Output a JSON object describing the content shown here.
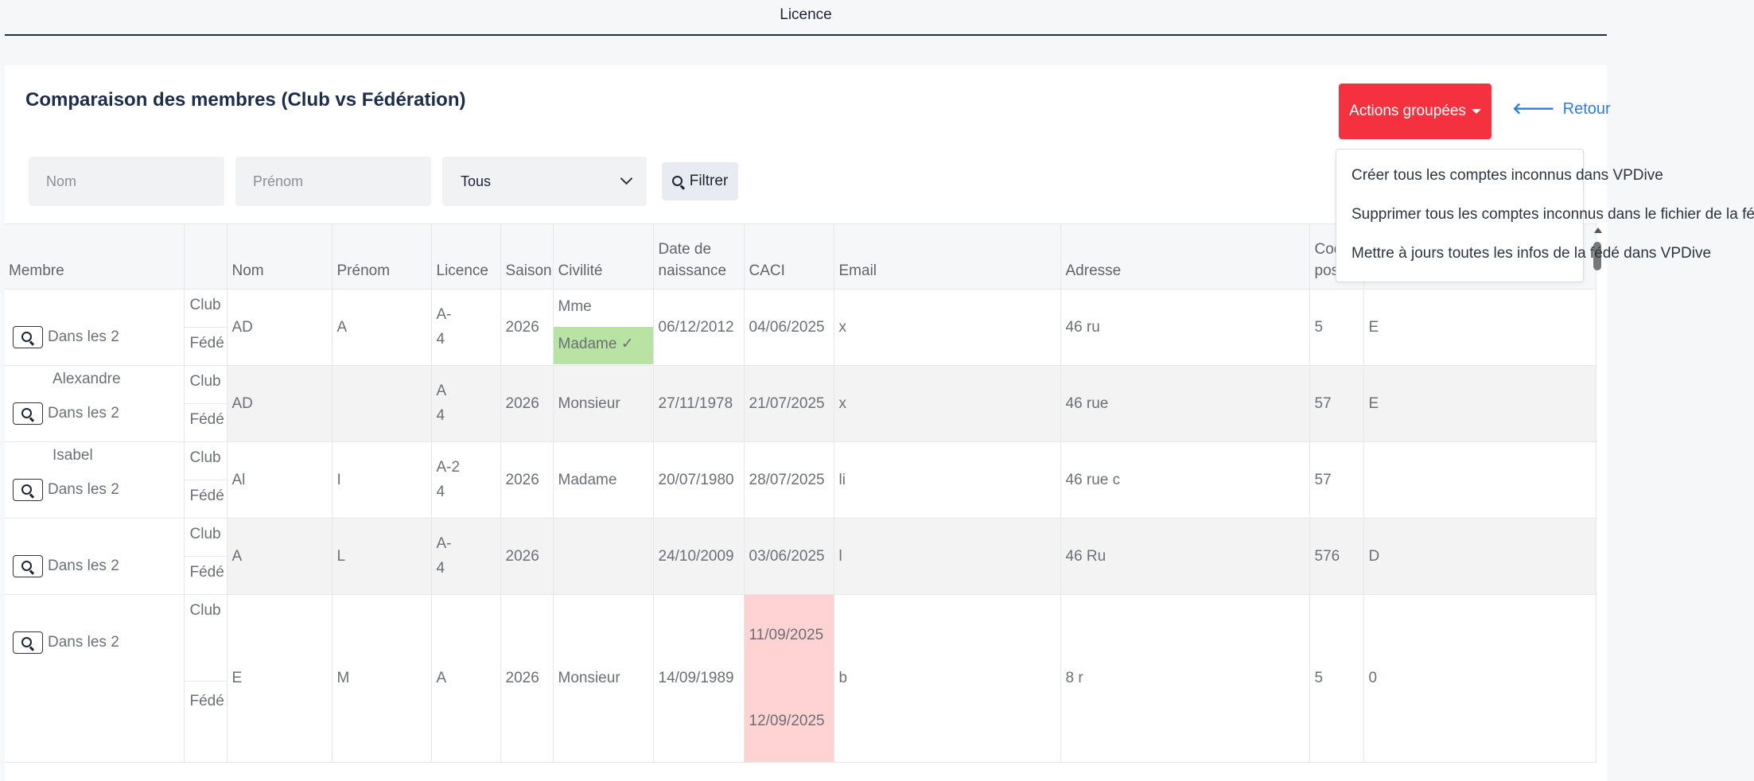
{
  "header": {
    "title": "Licence"
  },
  "page": {
    "title": "Comparaison des membres (Club vs Fédération)"
  },
  "actions": {
    "label": "Actions groupées",
    "retour": "Retour",
    "menu": [
      "Créer tous les comptes inconnus dans VPDive",
      "Supprimer tous les comptes inconnus dans le fichier de la fédé",
      "Mettre à jours toutes les infos de la fédé dans VPDive"
    ]
  },
  "filters": {
    "nom_placeholder": "Nom",
    "prenom_placeholder": "Prénom",
    "select_value": "Tous",
    "button": "Filtrer"
  },
  "table": {
    "columns": [
      "Membre",
      "",
      "Nom",
      "Prénom",
      "Licence",
      "Saison",
      "Civilité",
      "Date de naissance",
      "CACI",
      "Email",
      "Adresse",
      "Code postal"
    ],
    "src_club": "Club",
    "src_fede": "Fédé",
    "action_label": "Dans les 2",
    "rows": [
      {
        "member": "",
        "nom": "AD",
        "prenom": "A",
        "licence": "A-",
        "licence2": "4",
        "saison": "2026",
        "civilite_club": "Mme",
        "civilite_fede": "Madame ✓",
        "naissance": "06/12/2012",
        "caci": "04/06/2025",
        "email": "x",
        "adresse": "46 ru",
        "cp": "5",
        "ville": "E"
      },
      {
        "member": "Alexandre",
        "nom": "AD",
        "prenom": "",
        "licence": "A",
        "licence2": "4",
        "saison": "2026",
        "civilite": "Monsieur",
        "naissance": "27/11/1978",
        "caci": "21/07/2025",
        "email": "x",
        "adresse": "46 rue",
        "cp": "57",
        "ville": "E"
      },
      {
        "member": "Isabel",
        "nom": "Al",
        "prenom": "I",
        "licence": "A-2",
        "licence2": "4",
        "saison": "2026",
        "civilite": "Madame",
        "naissance": "20/07/1980",
        "caci": "28/07/2025",
        "email": "li",
        "adresse": "46 rue c",
        "cp": "57",
        "ville": ""
      },
      {
        "member": "",
        "nom": "A",
        "prenom": "L",
        "licence": "A-",
        "licence2": "4",
        "saison": "2026",
        "civilite": "",
        "naissance": "24/10/2009",
        "caci": "03/06/2025",
        "email": "l",
        "adresse": "46 Ru",
        "cp": "576",
        "ville": "D"
      },
      {
        "member": "",
        "nom": "E",
        "prenom": "M",
        "licence": "A",
        "licence2": "",
        "saison": "2026",
        "civilite": "Monsieur",
        "naissance": "14/09/1989",
        "caci_club": "11/09/2025",
        "caci_fede": "12/09/2025",
        "email": "b",
        "adresse": "8 r",
        "cp": "5",
        "ville": "0"
      }
    ]
  }
}
